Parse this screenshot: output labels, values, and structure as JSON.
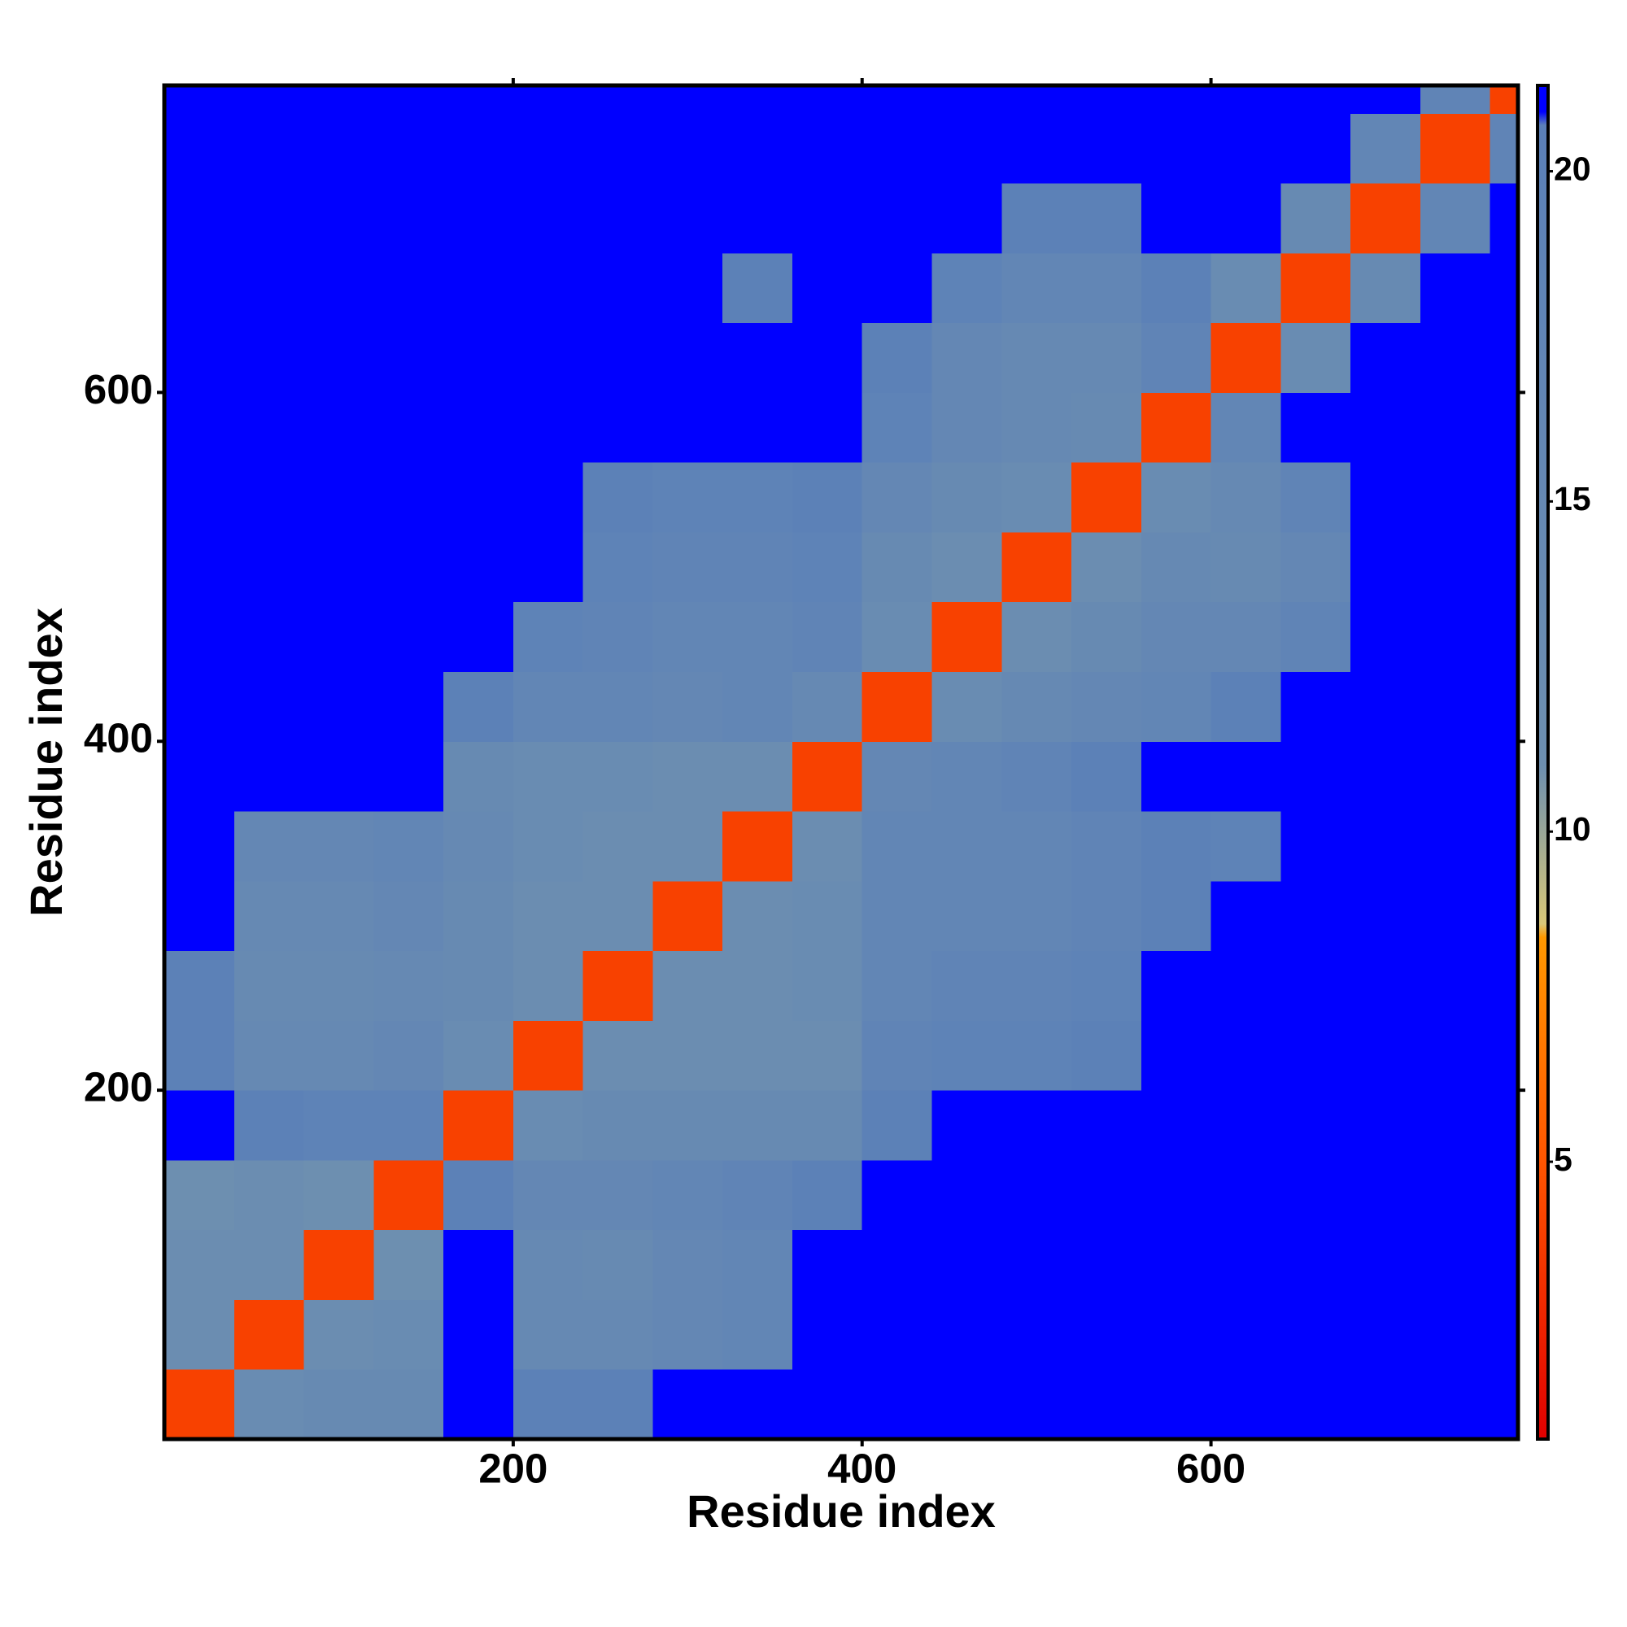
{
  "chart_data": {
    "type": "heatmap",
    "x_label": "Residue index",
    "y_label": "Residue index",
    "xbins": [
      0,
      40,
      80,
      120,
      160,
      200,
      240,
      280,
      320,
      360,
      400,
      440,
      480,
      520,
      560,
      600,
      640,
      680,
      720,
      760,
      776
    ],
    "ybins": [
      0,
      40,
      80,
      120,
      160,
      200,
      240,
      280,
      320,
      360,
      400,
      440,
      480,
      520,
      560,
      600,
      640,
      680,
      720,
      760,
      776
    ],
    "z": [
      [
        4,
        13,
        14,
        14,
        21,
        20,
        20,
        21,
        21,
        21,
        21,
        21,
        21,
        21,
        21,
        21,
        21,
        21,
        21,
        21
      ],
      [
        12,
        4,
        12,
        13,
        21,
        15,
        15,
        16,
        17,
        21,
        21,
        21,
        21,
        21,
        21,
        21,
        21,
        21,
        21,
        21
      ],
      [
        12,
        12,
        4,
        11,
        21,
        15,
        14,
        16,
        17,
        21,
        21,
        21,
        21,
        21,
        21,
        21,
        21,
        21,
        21,
        21
      ],
      [
        11,
        12,
        11,
        4,
        20,
        16,
        16,
        17,
        18,
        20,
        21,
        21,
        21,
        21,
        21,
        21,
        21,
        21,
        21,
        21
      ],
      [
        21,
        20,
        19,
        19,
        4,
        13,
        14,
        14,
        14,
        14,
        20,
        21,
        21,
        21,
        21,
        21,
        21,
        21,
        21,
        21
      ],
      [
        20,
        15,
        15,
        16,
        13,
        4,
        12,
        12,
        12,
        12,
        18,
        19,
        19,
        20,
        21,
        21,
        21,
        21,
        21,
        21
      ],
      [
        20,
        14,
        14,
        15,
        14,
        12,
        4,
        12,
        12,
        13,
        17,
        18,
        18,
        19,
        21,
        21,
        21,
        21,
        21,
        21
      ],
      [
        21,
        15,
        15,
        16,
        14,
        12,
        12,
        4,
        12,
        13,
        17,
        17,
        17,
        18,
        20,
        21,
        21,
        21,
        21,
        21
      ],
      [
        21,
        16,
        16,
        17,
        15,
        13,
        12,
        12,
        4,
        12,
        17,
        17,
        17,
        18,
        20,
        19,
        21,
        21,
        21,
        21
      ],
      [
        21,
        21,
        21,
        21,
        14,
        13,
        13,
        12,
        12,
        4,
        16,
        17,
        18,
        20,
        21,
        21,
        21,
        21,
        21,
        21
      ],
      [
        21,
        21,
        21,
        21,
        20,
        17,
        17,
        16,
        17,
        15,
        4,
        13,
        15,
        16,
        17,
        20,
        21,
        21,
        21,
        21
      ],
      [
        21,
        21,
        21,
        21,
        21,
        19,
        18,
        17,
        17,
        18,
        13,
        4,
        12,
        14,
        16,
        16,
        18,
        21,
        21,
        21
      ],
      [
        21,
        21,
        21,
        21,
        21,
        21,
        19,
        18,
        18,
        19,
        14,
        12,
        4,
        12,
        15,
        14,
        16,
        21,
        21,
        21
      ],
      [
        21,
        21,
        21,
        21,
        21,
        21,
        20,
        19,
        19,
        20,
        16,
        14,
        13,
        4,
        13,
        15,
        18,
        21,
        21,
        21
      ],
      [
        21,
        21,
        21,
        21,
        21,
        21,
        21,
        21,
        21,
        21,
        19,
        16,
        15,
        14,
        4,
        17,
        21,
        21,
        21,
        21
      ],
      [
        21,
        21,
        21,
        21,
        21,
        21,
        21,
        21,
        21,
        21,
        20,
        16,
        15,
        15,
        18,
        4,
        13,
        21,
        21,
        21
      ],
      [
        21,
        21,
        21,
        21,
        21,
        21,
        21,
        21,
        20,
        21,
        21,
        19,
        17,
        17,
        20,
        13,
        4,
        14,
        21,
        21
      ],
      [
        21,
        21,
        21,
        21,
        21,
        21,
        21,
        21,
        21,
        21,
        21,
        21,
        20,
        20,
        21,
        21,
        14,
        4,
        17,
        21
      ],
      [
        21,
        21,
        21,
        21,
        21,
        21,
        21,
        21,
        21,
        21,
        21,
        21,
        21,
        21,
        21,
        21,
        21,
        17,
        4,
        18
      ],
      [
        21,
        21,
        21,
        21,
        21,
        21,
        21,
        21,
        21,
        21,
        21,
        21,
        21,
        21,
        21,
        21,
        21,
        21,
        18,
        4
      ]
    ],
    "xlim": [
      0,
      776
    ],
    "ylim": [
      0,
      776
    ],
    "xticks": [
      200,
      400,
      600
    ],
    "yticks": [
      200,
      400,
      600
    ],
    "clim": [
      0.8,
      21.3
    ],
    "cticks": [
      5,
      10,
      15,
      20
    ],
    "color_stops": [
      0.8,
      5,
      8.4,
      8.6,
      11,
      20.7,
      20.9,
      21.3
    ],
    "colors": [
      "#e00000",
      "#ff5500",
      "#ff9900",
      "#d8c878",
      "#6d8fb0",
      "#5b80b8",
      "#0000ff",
      "#0000ff"
    ]
  }
}
